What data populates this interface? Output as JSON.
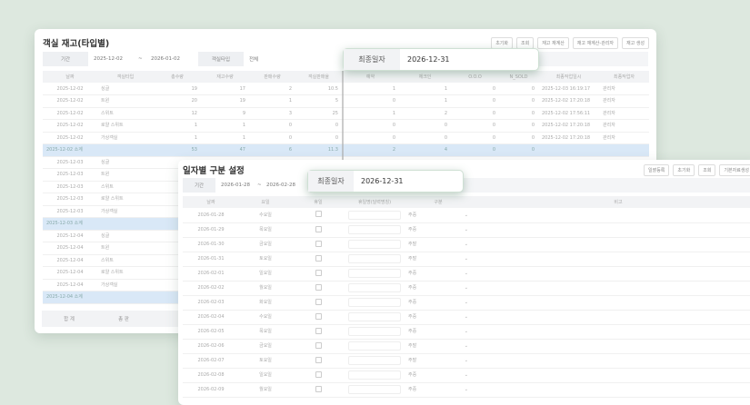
{
  "background_color": "#dde8df",
  "stock": {
    "title": "객실 재고(타입별)",
    "buttons": [
      "초기화",
      "조회",
      "재고 재계산",
      "재고 재계산-관리자",
      "재고 생성"
    ],
    "filter": {
      "period_label": "기간",
      "start": "2025-12-02",
      "sep": "~",
      "end": "2026-01-02",
      "roomtype_label": "객실타입",
      "roomtype_value": "전체"
    },
    "columns": [
      "날짜",
      "객실타입",
      "총수량",
      "재고수량",
      "판매수량",
      "객실판매율",
      "예약",
      "체크인",
      "O.O.O",
      "N_SOLD",
      "최종작업일시",
      "최종작업자"
    ],
    "rows": [
      {
        "sub": false,
        "c": [
          "2025-12-02",
          "싱글",
          "19",
          "17",
          "2",
          "10.5",
          "1",
          "1",
          "0",
          "0",
          "2025-12-03 16:19:17",
          "관리자"
        ]
      },
      {
        "sub": false,
        "c": [
          "2025-12-02",
          "트윈",
          "20",
          "19",
          "1",
          "5",
          "0",
          "1",
          "0",
          "0",
          "2025-12-02 17:20:18",
          "관리자"
        ]
      },
      {
        "sub": false,
        "c": [
          "2025-12-02",
          "스위트",
          "12",
          "9",
          "3",
          "25",
          "1",
          "2",
          "0",
          "0",
          "2025-12-02 17:56:11",
          "관리자"
        ]
      },
      {
        "sub": false,
        "c": [
          "2025-12-02",
          "로얄 스위트",
          "1",
          "1",
          "0",
          "0",
          "0",
          "0",
          "0",
          "0",
          "2025-12-02 17:20:18",
          "관리자"
        ]
      },
      {
        "sub": false,
        "c": [
          "2025-12-02",
          "가상객실",
          "1",
          "1",
          "0",
          "0",
          "0",
          "0",
          "0",
          "0",
          "2025-12-02 17:20:18",
          "관리자"
        ]
      },
      {
        "sub": true,
        "c": [
          "2025-12-02 소계",
          "",
          "53",
          "47",
          "6",
          "11.3",
          "2",
          "4",
          "0",
          "0",
          "",
          ""
        ]
      },
      {
        "sub": false,
        "c": [
          "2025-12-03",
          "싱글",
          "",
          "",
          "",
          "",
          "",
          "",
          "",
          "",
          "",
          ""
        ]
      },
      {
        "sub": false,
        "c": [
          "2025-12-03",
          "트윈",
          "",
          "",
          "",
          "",
          "",
          "",
          "",
          "",
          "",
          ""
        ]
      },
      {
        "sub": false,
        "c": [
          "2025-12-03",
          "스위트",
          "",
          "",
          "",
          "",
          "",
          "",
          "",
          "",
          "",
          ""
        ]
      },
      {
        "sub": false,
        "c": [
          "2025-12-03",
          "로얄 스위트",
          "",
          "",
          "",
          "",
          "",
          "",
          "",
          "",
          "",
          ""
        ]
      },
      {
        "sub": false,
        "c": [
          "2025-12-03",
          "가상객실",
          "",
          "",
          "",
          "",
          "",
          "",
          "",
          "",
          "",
          ""
        ]
      },
      {
        "sub": true,
        "c": [
          "2025-12-03 소계",
          "",
          "",
          "",
          "",
          "",
          "",
          "",
          "",
          "",
          "",
          ""
        ]
      },
      {
        "sub": false,
        "c": [
          "2025-12-04",
          "싱글",
          "",
          "",
          "",
          "",
          "",
          "",
          "",
          "",
          "",
          ""
        ]
      },
      {
        "sub": false,
        "c": [
          "2025-12-04",
          "트윈",
          "",
          "",
          "",
          "",
          "",
          "",
          "",
          "",
          "",
          ""
        ]
      },
      {
        "sub": false,
        "c": [
          "2025-12-04",
          "스위트",
          "",
          "",
          "",
          "",
          "",
          "",
          "",
          "",
          "",
          ""
        ]
      },
      {
        "sub": false,
        "c": [
          "2025-12-04",
          "로얄 스위트",
          "",
          "",
          "",
          "",
          "",
          "",
          "",
          "",
          "",
          ""
        ]
      },
      {
        "sub": false,
        "c": [
          "2025-12-04",
          "가상객실",
          "",
          "",
          "",
          "",
          "",
          "",
          "",
          "",
          "",
          ""
        ]
      },
      {
        "sub": true,
        "c": [
          "2025-12-04 소계",
          "",
          "",
          "",
          "",
          "",
          "",
          "",
          "",
          "",
          "",
          ""
        ]
      }
    ],
    "footer": [
      "합 계",
      "총 판"
    ]
  },
  "popup1": {
    "label": "최종일자",
    "value": "2026-12-31"
  },
  "daytype": {
    "title": "일자별 구분 설정",
    "buttons": [
      "일괄등록",
      "초기화",
      "조회",
      "기본자료생성"
    ],
    "filter": {
      "period_label": "기간",
      "start": "2026-01-28",
      "sep": "~",
      "end": "2026-02-28"
    },
    "columns": [
      "날짜",
      "요일",
      "휴일",
      "휴일명(달력명칭)",
      "구분",
      "비고"
    ],
    "rows": [
      [
        "2026-01-28",
        "수요일",
        "주중"
      ],
      [
        "2026-01-29",
        "목요일",
        "주중"
      ],
      [
        "2026-01-30",
        "금요일",
        "주말"
      ],
      [
        "2026-01-31",
        "토요일",
        "주말"
      ],
      [
        "2026-02-01",
        "일요일",
        "주중"
      ],
      [
        "2026-02-02",
        "월요일",
        "주중"
      ],
      [
        "2026-02-03",
        "화요일",
        "주중"
      ],
      [
        "2026-02-04",
        "수요일",
        "주중"
      ],
      [
        "2026-02-05",
        "목요일",
        "주중"
      ],
      [
        "2026-02-06",
        "금요일",
        "주말"
      ],
      [
        "2026-02-07",
        "토요일",
        "주말"
      ],
      [
        "2026-02-08",
        "일요일",
        "주중"
      ],
      [
        "2026-02-09",
        "월요일",
        "주중"
      ]
    ]
  },
  "popup2": {
    "label": "최종일자",
    "value": "2026-12-31"
  }
}
